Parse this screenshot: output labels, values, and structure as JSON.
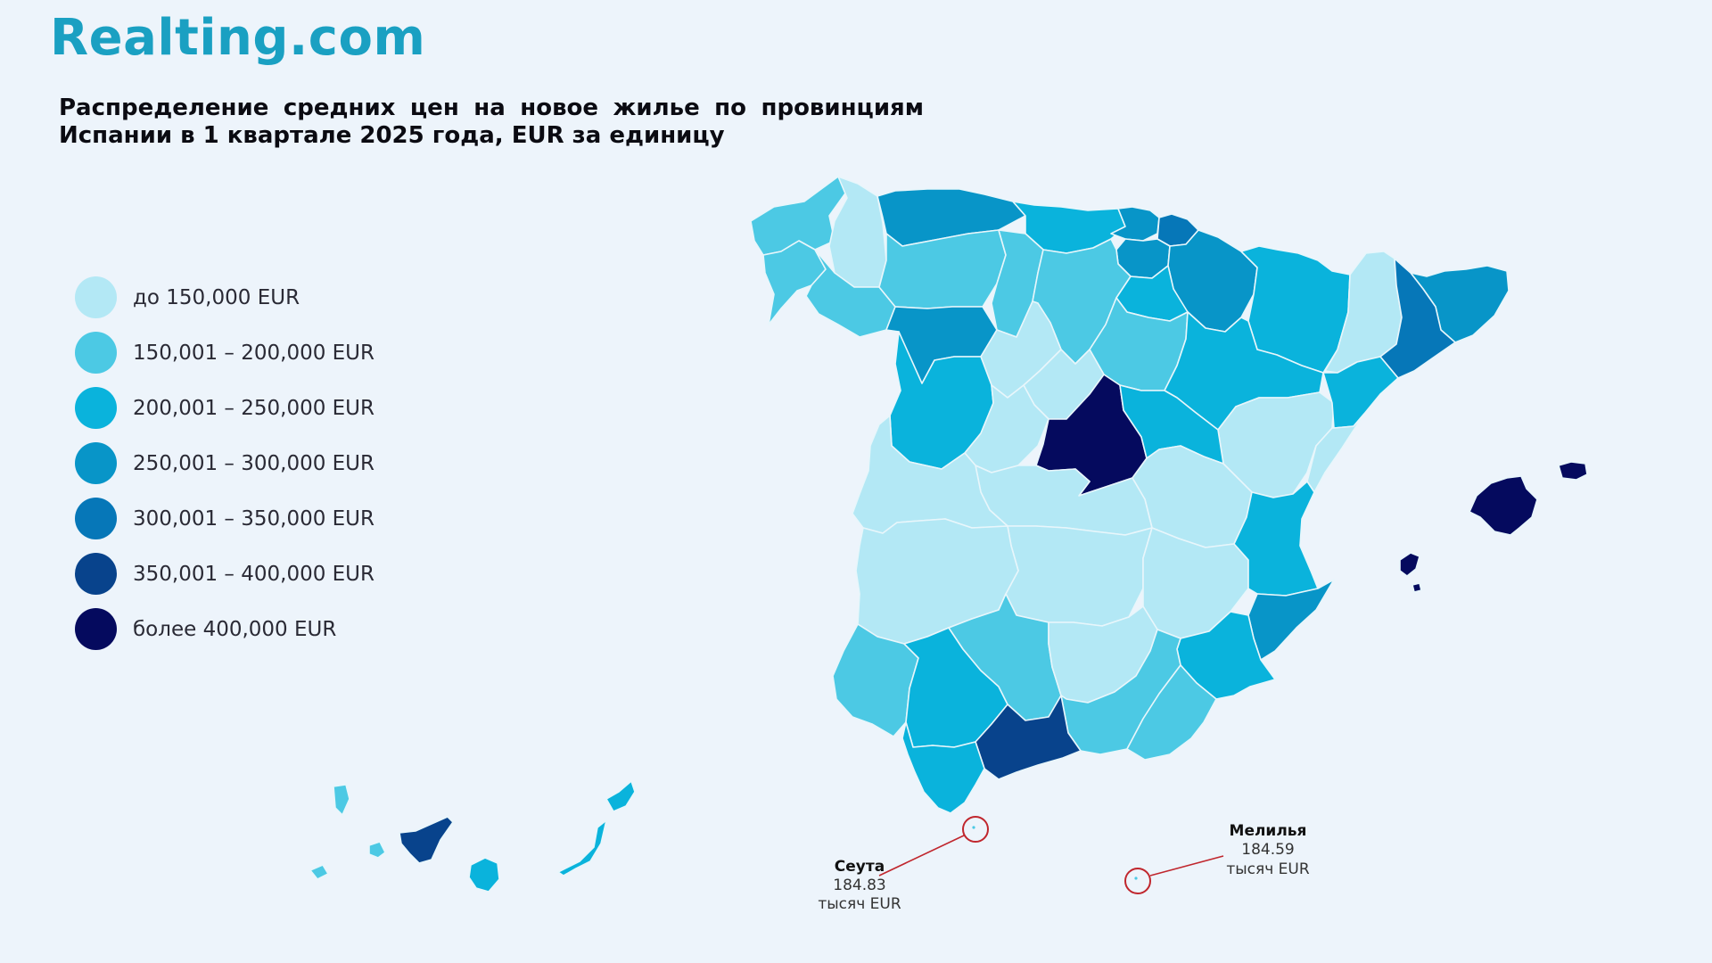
{
  "brand": {
    "logo_text": "Realting.com"
  },
  "title": {
    "line1": "Распределение средних цен на новое жилье по провинциям",
    "line2": "Испании в 1 квартале 2025 года, EUR за единицу"
  },
  "legend": [
    {
      "label": "до 150,000 EUR",
      "color": "#b3e8f5"
    },
    {
      "label": "150,001 – 200,000 EUR",
      "color": "#4cc9e4"
    },
    {
      "label": "200,001 – 250,000 EUR",
      "color": "#0ab3dc"
    },
    {
      "label": "250,001 – 300,000 EUR",
      "color": "#0895c8"
    },
    {
      "label": "300,001 – 350,000 EUR",
      "color": "#0677b8"
    },
    {
      "label": "350,001 – 400,000 EUR",
      "color": "#08438c"
    },
    {
      "label": "более 400,000 EUR",
      "color": "#050a5e"
    }
  ],
  "callouts": {
    "ceuta": {
      "name": "Сеута",
      "value": "184.83",
      "unit": "тысяч EUR"
    },
    "melilla": {
      "name": "Мелилья",
      "value": "184.59",
      "unit": "тысяч EUR"
    }
  },
  "map_colors": {
    "ocean_bg": "#edf4fb",
    "border": "#e8f6fb",
    "marker": "#c0262d"
  }
}
